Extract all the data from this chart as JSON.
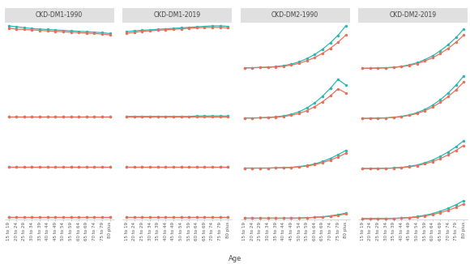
{
  "col_titles": [
    "CKD-DM1-1990",
    "CKD-DM1-2019",
    "CKD-DM2-1990",
    "CKD-DM2-2019"
  ],
  "age_labels": [
    "15 to 19",
    "20 to 24",
    "25 to 29",
    "30 to 34",
    "35 to 39",
    "40 to 44",
    "45 to 49",
    "50 to 54",
    "55 to 59",
    "60 to 64",
    "65 to 69",
    "70 to 74",
    "75 to 79",
    "80 plus"
  ],
  "color_teal": "#29b8b0",
  "color_salmon": "#e8705a",
  "line_width": 0.9,
  "marker_size": 2.5,
  "background": "#ffffff",
  "strip_bg": "#e0e0e0",
  "strip_text_color": "#444444",
  "rows": 4,
  "cols": 4,
  "data": {
    "CKD-DM1-1990": {
      "row0": {
        "teal": [
          0.95,
          0.93,
          0.91,
          0.89,
          0.88,
          0.87,
          0.86,
          0.85,
          0.84,
          0.83,
          0.82,
          0.81,
          0.8,
          0.78
        ],
        "salmon": [
          0.9,
          0.88,
          0.87,
          0.86,
          0.85,
          0.84,
          0.83,
          0.82,
          0.81,
          0.8,
          0.79,
          0.78,
          0.77,
          0.75
        ]
      },
      "row1": {
        "teal": [
          0.05,
          0.05,
          0.05,
          0.05,
          0.05,
          0.05,
          0.05,
          0.05,
          0.05,
          0.05,
          0.05,
          0.05,
          0.05,
          0.05
        ],
        "salmon": [
          0.05,
          0.05,
          0.05,
          0.05,
          0.05,
          0.05,
          0.05,
          0.05,
          0.05,
          0.05,
          0.05,
          0.05,
          0.05,
          0.05
        ]
      },
      "row2": {
        "teal": [
          0.05,
          0.05,
          0.05,
          0.05,
          0.05,
          0.05,
          0.05,
          0.05,
          0.05,
          0.05,
          0.05,
          0.05,
          0.05,
          0.05
        ],
        "salmon": [
          0.05,
          0.05,
          0.05,
          0.05,
          0.05,
          0.05,
          0.05,
          0.05,
          0.05,
          0.05,
          0.05,
          0.05,
          0.05,
          0.05
        ]
      },
      "row3": {
        "teal": [
          0.05,
          0.05,
          0.05,
          0.05,
          0.05,
          0.05,
          0.05,
          0.05,
          0.05,
          0.05,
          0.05,
          0.05,
          0.05,
          0.05
        ],
        "salmon": [
          0.05,
          0.05,
          0.05,
          0.05,
          0.05,
          0.05,
          0.05,
          0.05,
          0.05,
          0.05,
          0.05,
          0.05,
          0.05,
          0.05
        ]
      }
    },
    "CKD-DM1-2019": {
      "row0": {
        "teal": [
          0.75,
          0.77,
          0.78,
          0.79,
          0.8,
          0.81,
          0.82,
          0.83,
          0.84,
          0.85,
          0.86,
          0.87,
          0.87,
          0.86
        ],
        "salmon": [
          0.72,
          0.74,
          0.76,
          0.77,
          0.78,
          0.79,
          0.8,
          0.81,
          0.82,
          0.83,
          0.84,
          0.84,
          0.84,
          0.83
        ]
      },
      "row1": {
        "teal": [
          0.05,
          0.05,
          0.05,
          0.05,
          0.05,
          0.05,
          0.05,
          0.05,
          0.05,
          0.06,
          0.06,
          0.06,
          0.06,
          0.06
        ],
        "salmon": [
          0.05,
          0.05,
          0.05,
          0.05,
          0.05,
          0.05,
          0.05,
          0.05,
          0.05,
          0.05,
          0.05,
          0.05,
          0.05,
          0.05
        ]
      },
      "row2": {
        "teal": [
          0.05,
          0.05,
          0.05,
          0.05,
          0.05,
          0.05,
          0.05,
          0.05,
          0.05,
          0.05,
          0.05,
          0.05,
          0.05,
          0.05
        ],
        "salmon": [
          0.05,
          0.05,
          0.05,
          0.05,
          0.05,
          0.05,
          0.05,
          0.05,
          0.05,
          0.05,
          0.05,
          0.05,
          0.05,
          0.05
        ]
      },
      "row3": {
        "teal": [
          0.05,
          0.05,
          0.05,
          0.05,
          0.05,
          0.05,
          0.05,
          0.05,
          0.05,
          0.05,
          0.05,
          0.05,
          0.05,
          0.05
        ],
        "salmon": [
          0.05,
          0.05,
          0.05,
          0.05,
          0.05,
          0.05,
          0.05,
          0.05,
          0.05,
          0.05,
          0.05,
          0.05,
          0.05,
          0.05
        ]
      }
    },
    "CKD-DM2-1990": {
      "row0": {
        "teal": [
          0.05,
          0.06,
          0.07,
          0.09,
          0.12,
          0.17,
          0.25,
          0.37,
          0.54,
          0.76,
          1.04,
          1.38,
          1.78,
          2.28
        ],
        "salmon": [
          0.05,
          0.06,
          0.07,
          0.08,
          0.1,
          0.14,
          0.2,
          0.29,
          0.43,
          0.6,
          0.82,
          1.09,
          1.41,
          1.79
        ]
      },
      "row1": {
        "teal": [
          0.05,
          0.05,
          0.06,
          0.08,
          0.11,
          0.16,
          0.25,
          0.38,
          0.58,
          0.85,
          1.2,
          1.62,
          2.1,
          1.8
        ],
        "salmon": [
          0.05,
          0.05,
          0.06,
          0.07,
          0.09,
          0.13,
          0.19,
          0.29,
          0.44,
          0.65,
          0.91,
          1.22,
          1.6,
          1.38
        ]
      },
      "row2": {
        "teal": [
          0.05,
          0.05,
          0.05,
          0.05,
          0.06,
          0.07,
          0.09,
          0.13,
          0.19,
          0.27,
          0.4,
          0.56,
          0.76,
          0.99
        ],
        "salmon": [
          0.05,
          0.05,
          0.05,
          0.05,
          0.06,
          0.07,
          0.08,
          0.11,
          0.16,
          0.23,
          0.34,
          0.47,
          0.64,
          0.84
        ]
      },
      "row3": {
        "teal": [
          0.05,
          0.05,
          0.05,
          0.05,
          0.05,
          0.05,
          0.05,
          0.06,
          0.07,
          0.1,
          0.13,
          0.17,
          0.24,
          0.32
        ],
        "salmon": [
          0.05,
          0.05,
          0.05,
          0.05,
          0.05,
          0.05,
          0.05,
          0.05,
          0.07,
          0.09,
          0.11,
          0.15,
          0.2,
          0.27
        ]
      }
    },
    "CKD-DM2-2019": {
      "row0": {
        "teal": [
          0.05,
          0.06,
          0.08,
          0.11,
          0.16,
          0.25,
          0.4,
          0.62,
          0.93,
          1.32,
          1.84,
          2.46,
          3.18,
          4.05
        ],
        "salmon": [
          0.05,
          0.06,
          0.07,
          0.1,
          0.14,
          0.22,
          0.34,
          0.53,
          0.79,
          1.13,
          1.56,
          2.09,
          2.7,
          3.44
        ]
      },
      "row1": {
        "teal": [
          0.05,
          0.06,
          0.08,
          0.11,
          0.17,
          0.26,
          0.41,
          0.64,
          0.96,
          1.4,
          1.96,
          2.64,
          3.44,
          4.38
        ],
        "salmon": [
          0.05,
          0.06,
          0.07,
          0.1,
          0.15,
          0.23,
          0.36,
          0.55,
          0.83,
          1.21,
          1.69,
          2.27,
          2.96,
          3.76
        ]
      },
      "row2": {
        "teal": [
          0.05,
          0.05,
          0.06,
          0.08,
          0.11,
          0.17,
          0.27,
          0.41,
          0.63,
          0.92,
          1.29,
          1.74,
          2.27,
          2.9
        ],
        "salmon": [
          0.05,
          0.05,
          0.06,
          0.07,
          0.1,
          0.14,
          0.22,
          0.34,
          0.52,
          0.76,
          1.07,
          1.44,
          1.89,
          2.41
        ]
      },
      "row3": {
        "teal": [
          0.05,
          0.05,
          0.05,
          0.06,
          0.08,
          0.11,
          0.17,
          0.26,
          0.39,
          0.57,
          0.81,
          1.1,
          1.46,
          1.89
        ],
        "salmon": [
          0.05,
          0.05,
          0.05,
          0.06,
          0.07,
          0.1,
          0.14,
          0.21,
          0.32,
          0.47,
          0.66,
          0.9,
          1.19,
          1.55
        ]
      }
    }
  },
  "xlabel": "Age",
  "xlabel_fontsize": 6,
  "tick_fontsize": 4.0,
  "strip_fontsize": 5.5,
  "col_ylim": {
    "CKD-DM1-1990": [
      0.6,
      1.1
    ],
    "CKD-DM1-2019": [
      0.6,
      1.1
    ],
    "CKD-DM2-1990": [
      0.0,
      2.6
    ],
    "CKD-DM2-2019": [
      0.0,
      5.0
    ]
  }
}
